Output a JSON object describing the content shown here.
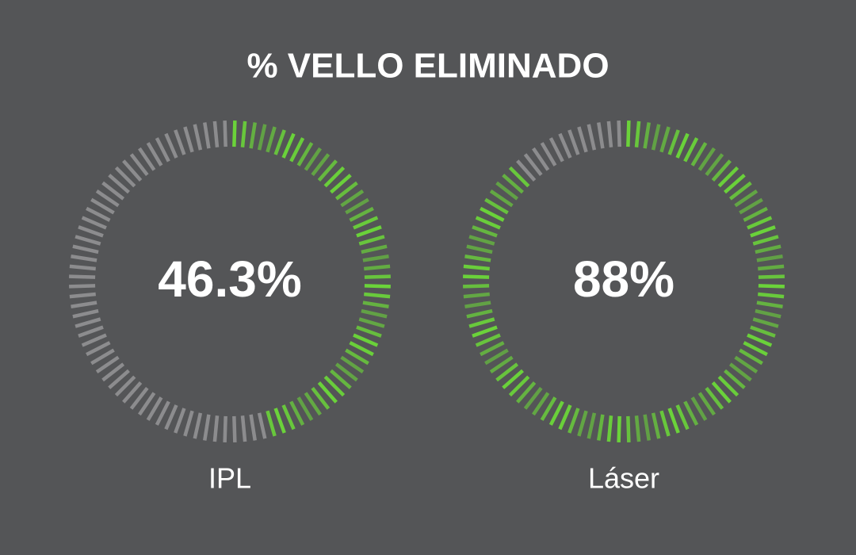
{
  "title": "% VELLO ELIMINADO",
  "chart_data": [
    {
      "type": "gauge",
      "categories": [
        "IPL"
      ],
      "values": [
        46.3
      ],
      "value_labels": [
        "46.3%"
      ],
      "ylim": [
        0,
        100
      ],
      "color": "#6bd33a",
      "track_color": "#8c8c8e"
    },
    {
      "type": "gauge",
      "categories": [
        "Láser"
      ],
      "values": [
        88
      ],
      "value_labels": [
        "88%"
      ],
      "ylim": [
        0,
        100
      ],
      "color": "#6bd33a",
      "track_color": "#8c8c8e"
    }
  ]
}
